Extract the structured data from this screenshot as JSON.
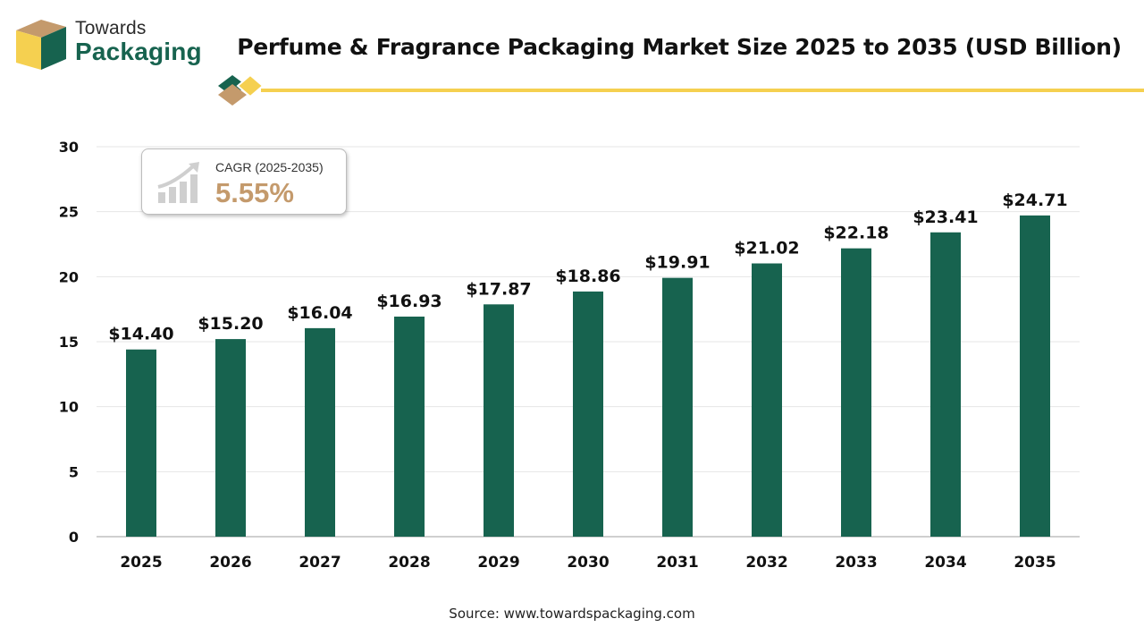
{
  "logo": {
    "line1": "Towards",
    "line2": "Packaging",
    "colors": {
      "green": "#17634f",
      "tan": "#c49a6c",
      "yellow": "#f5d050"
    }
  },
  "title": "Perfume & Fragrance Packaging Market Size 2025 to 2035 (USD Billion)",
  "cagr": {
    "label": "CAGR (2025-2035)",
    "value": "5.55%",
    "icon": "growth-chart-icon"
  },
  "source": "Source: www.towardspackaging.com",
  "chart_data": {
    "type": "bar",
    "title": "Perfume & Fragrance Packaging Market Size 2025 to 2035 (USD Billion)",
    "categories": [
      "2025",
      "2026",
      "2027",
      "2028",
      "2029",
      "2030",
      "2031",
      "2032",
      "2033",
      "2034",
      "2035"
    ],
    "values": [
      14.4,
      15.2,
      16.04,
      16.93,
      17.87,
      18.86,
      19.91,
      21.02,
      22.18,
      23.41,
      24.71
    ],
    "value_labels": [
      "$14.40",
      "$15.20",
      "$16.04",
      "$16.93",
      "$17.87",
      "$18.86",
      "$19.91",
      "$21.02",
      "$22.18",
      "$23.41",
      "$24.71"
    ],
    "yticks": [
      "0",
      "5",
      "10",
      "15",
      "20",
      "25",
      "30"
    ],
    "ylim": [
      0,
      30
    ],
    "xlabel": "",
    "ylabel": "",
    "grid": true,
    "bar_color": "#17634f"
  }
}
